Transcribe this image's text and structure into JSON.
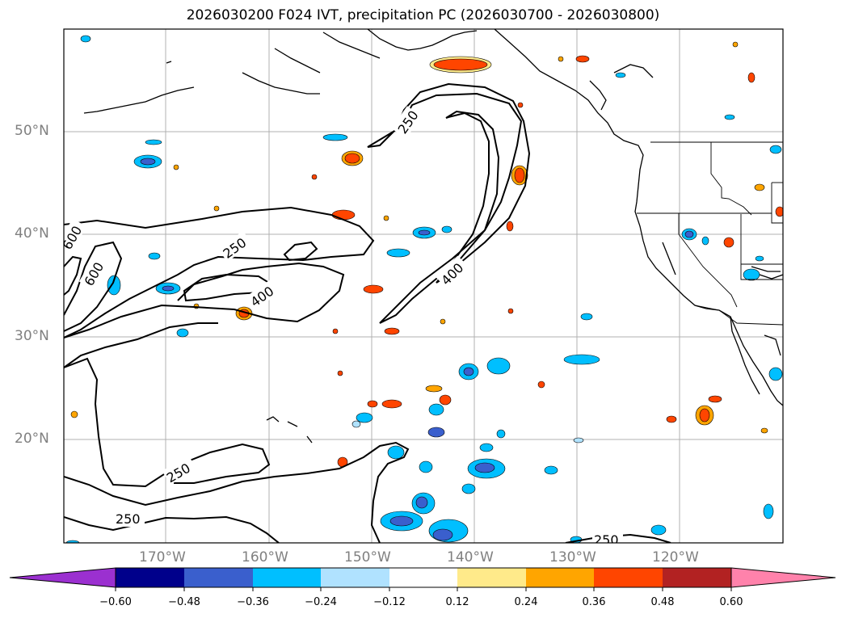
{
  "title": "2026030200 F024 IVT, precipitation PC (2026030700 - 2026030800)",
  "latitude_labels": [
    "50°N",
    "40°N",
    "30°N",
    "20°N"
  ],
  "longitude_labels": [
    "170°W",
    "160°W",
    "150°W",
    "140°W",
    "130°W",
    "120°W"
  ],
  "ivt_contour_labels": [
    "250",
    "250",
    "250",
    "250",
    "250",
    "400",
    "400",
    "600",
    "600"
  ],
  "colorbar": {
    "tick_labels": [
      "−0.60",
      "−0.48",
      "−0.36",
      "−0.24",
      "−0.12",
      "0.12",
      "0.24",
      "0.36",
      "0.48",
      "0.60"
    ],
    "colors": [
      "#9b30d0",
      "#00008b",
      "#3a5fcd",
      "#00bfff",
      "#b0e2ff",
      "#ffffff",
      "#ffea8a",
      "#ffa500",
      "#ff4500",
      "#b22222",
      "#ff82ab"
    ]
  },
  "colors": {
    "negative_strong": "#3a5fcd",
    "negative_mid": "#00bfff",
    "negative_weak": "#b0e2ff",
    "positive_weak": "#ffea8a",
    "positive_mid": "#ffa500",
    "positive_strong": "#ff4500",
    "grid": "#b0b0b0",
    "coast": "#000000"
  }
}
